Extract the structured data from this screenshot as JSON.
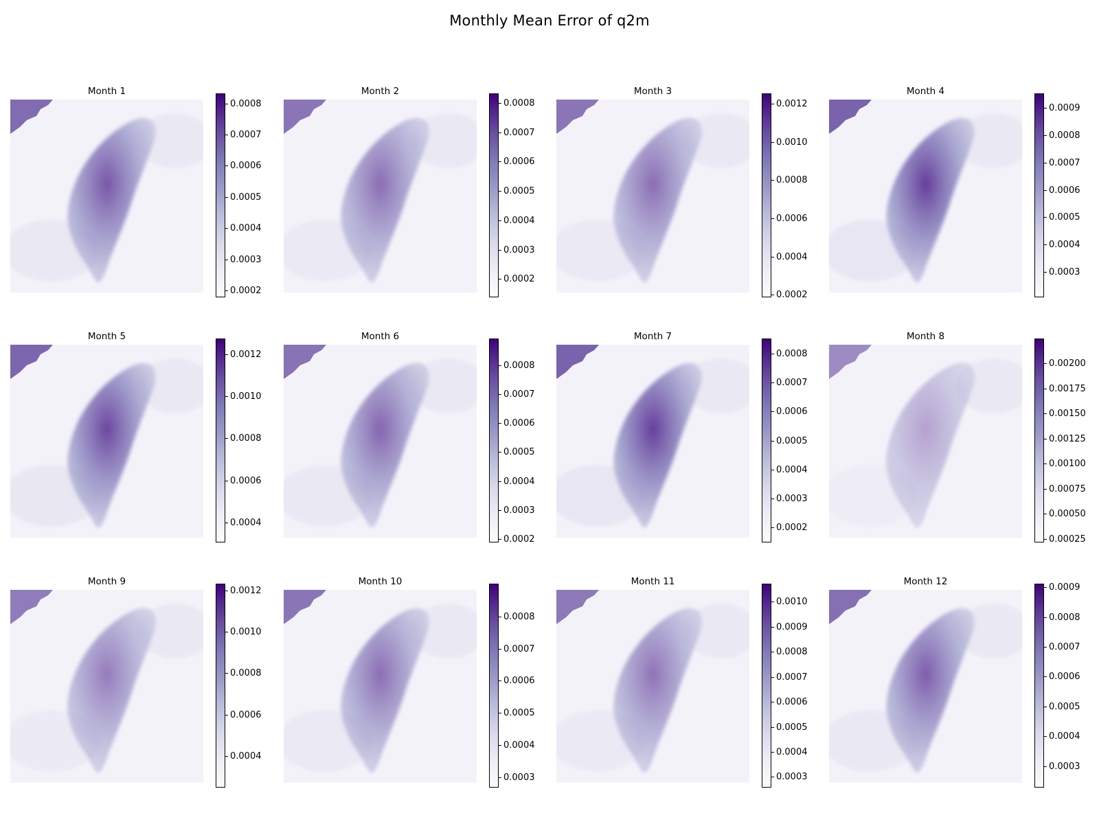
{
  "chart_data": {
    "type": "heatmap",
    "title": "Monthly Mean Error of q2m",
    "colormap": "Purples",
    "colors": {
      "low": "#fcfbfd",
      "mid": "#9e9ac8",
      "high": "#3f007d"
    },
    "panels": [
      {
        "title": "Month 1",
        "vmin": 0.00018,
        "vmax": 0.00083,
        "ticks": [
          "0.0002",
          "0.0003",
          "0.0004",
          "0.0005",
          "0.0006",
          "0.0007",
          "0.0008"
        ],
        "tick_values": [
          0.0002,
          0.0003,
          0.0004,
          0.0005,
          0.0006,
          0.0007,
          0.0008
        ]
      },
      {
        "title": "Month 2",
        "vmin": 0.00014,
        "vmax": 0.00083,
        "ticks": [
          "0.0002",
          "0.0003",
          "0.0004",
          "0.0005",
          "0.0006",
          "0.0007",
          "0.0008"
        ],
        "tick_values": [
          0.0002,
          0.0003,
          0.0004,
          0.0005,
          0.0006,
          0.0007,
          0.0008
        ]
      },
      {
        "title": "Month 3",
        "vmin": 0.00019,
        "vmax": 0.00125,
        "ticks": [
          "0.0002",
          "0.0004",
          "0.0006",
          "0.0008",
          "0.0010",
          "0.0012"
        ],
        "tick_values": [
          0.0002,
          0.0004,
          0.0006,
          0.0008,
          0.001,
          0.0012
        ]
      },
      {
        "title": "Month 4",
        "vmin": 0.00021,
        "vmax": 0.00095,
        "ticks": [
          "0.0003",
          "0.0004",
          "0.0005",
          "0.0006",
          "0.0007",
          "0.0008",
          "0.0009"
        ],
        "tick_values": [
          0.0003,
          0.0004,
          0.0005,
          0.0006,
          0.0007,
          0.0008,
          0.0009
        ]
      },
      {
        "title": "Month 5",
        "vmin": 0.00031,
        "vmax": 0.00127,
        "ticks": [
          "0.0004",
          "0.0006",
          "0.0008",
          "0.0010",
          "0.0012"
        ],
        "tick_values": [
          0.0004,
          0.0006,
          0.0008,
          0.001,
          0.0012
        ]
      },
      {
        "title": "Month 6",
        "vmin": 0.00019,
        "vmax": 0.00089,
        "ticks": [
          "0.0002",
          "0.0003",
          "0.0004",
          "0.0005",
          "0.0006",
          "0.0007",
          "0.0008"
        ],
        "tick_values": [
          0.0002,
          0.0003,
          0.0004,
          0.0005,
          0.0006,
          0.0007,
          0.0008
        ]
      },
      {
        "title": "Month 7",
        "vmin": 0.00015,
        "vmax": 0.00085,
        "ticks": [
          "0.0002",
          "0.0003",
          "0.0004",
          "0.0005",
          "0.0006",
          "0.0007",
          "0.0008"
        ],
        "tick_values": [
          0.0002,
          0.0003,
          0.0004,
          0.0005,
          0.0006,
          0.0007,
          0.0008
        ]
      },
      {
        "title": "Month 8",
        "vmin": 0.00022,
        "vmax": 0.00224,
        "ticks": [
          "0.00025",
          "0.00050",
          "0.00075",
          "0.00100",
          "0.00125",
          "0.00150",
          "0.00175",
          "0.00200"
        ],
        "tick_values": [
          0.00025,
          0.0005,
          0.00075,
          0.001,
          0.00125,
          0.0015,
          0.00175,
          0.002
        ]
      },
      {
        "title": "Month 9",
        "vmin": 0.00025,
        "vmax": 0.00123,
        "ticks": [
          "0.0004",
          "0.0006",
          "0.0008",
          "0.0010",
          "0.0012"
        ],
        "tick_values": [
          0.0004,
          0.0006,
          0.0008,
          0.001,
          0.0012
        ]
      },
      {
        "title": "Month 10",
        "vmin": 0.00027,
        "vmax": 0.0009,
        "ticks": [
          "0.0003",
          "0.0004",
          "0.0005",
          "0.0006",
          "0.0007",
          "0.0008"
        ],
        "tick_values": [
          0.0003,
          0.0004,
          0.0005,
          0.0006,
          0.0007,
          0.0008
        ]
      },
      {
        "title": "Month 11",
        "vmin": 0.00026,
        "vmax": 0.00107,
        "ticks": [
          "0.0003",
          "0.0004",
          "0.0005",
          "0.0006",
          "0.0007",
          "0.0008",
          "0.0009",
          "0.0010"
        ],
        "tick_values": [
          0.0003,
          0.0004,
          0.0005,
          0.0006,
          0.0007,
          0.0008,
          0.0009,
          0.001
        ]
      },
      {
        "title": "Month 12",
        "vmin": 0.00023,
        "vmax": 0.00091,
        "ticks": [
          "0.0003",
          "0.0004",
          "0.0005",
          "0.0006",
          "0.0007",
          "0.0008",
          "0.0009"
        ],
        "tick_values": [
          0.0003,
          0.0004,
          0.0005,
          0.0006,
          0.0007,
          0.0008,
          0.0009
        ]
      }
    ]
  }
}
